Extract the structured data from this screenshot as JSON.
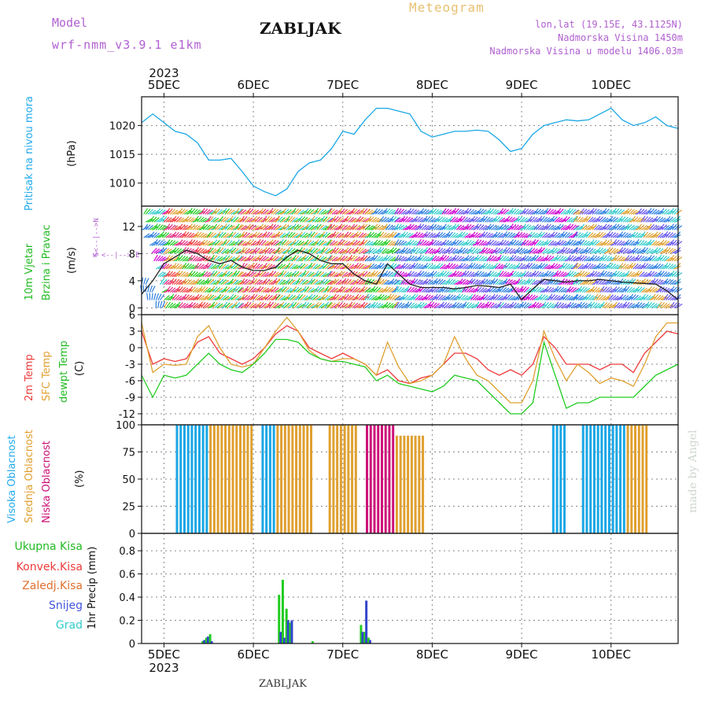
{
  "header": {
    "model_label": "Model",
    "model_name": "wrf-nmm_v3.9.1 e1km",
    "station": "ZABLJAK",
    "product": "Meteogram",
    "coords": "lon,lat (19.15E, 43.1125N)",
    "elevation": "Nadmorska Visina 1450m",
    "model_elevation": "Nadmorska Visina u modelu 1406.03m",
    "footer_station": "ZABLJAK",
    "watermark": "made by Angel"
  },
  "colors": {
    "pressure": "#1aa7e6",
    "red": "#ee3b3b",
    "orange": "#e0a030",
    "green": "#22cc22",
    "magenta": "#cc1177",
    "blue": "#3344cc",
    "cyan": "#33cccc",
    "purple": "#a040c0",
    "grid": "#888888"
  },
  "chart_data": {
    "x_axis": {
      "year": "2023",
      "day_labels": [
        "5DEC",
        "6DEC",
        "7DEC",
        "8DEC",
        "9DEC",
        "10DEC"
      ],
      "x_range_hours": [
        0,
        144
      ],
      "note_day_hours": [
        0,
        24,
        48,
        72,
        96,
        120
      ]
    },
    "panels": [
      {
        "name": "pressure",
        "type": "line",
        "ylabel_left": "Pritisak na nivou mora",
        "unit": "(hPa)",
        "yticks": [
          "1010",
          "1015",
          "1020"
        ],
        "ylim": [
          1006,
          1025
        ],
        "series": [
          {
            "color": "pressure",
            "x": [
              -6,
              -3,
              0,
              3,
              6,
              9,
              12,
              15,
              18,
              21,
              24,
              27,
              30,
              33,
              36,
              39,
              42,
              45,
              48,
              51,
              54,
              57,
              60,
              63,
              66,
              69,
              72,
              75,
              78,
              81,
              84,
              87,
              90,
              93,
              96,
              99,
              102,
              105,
              108,
              111,
              114,
              117,
              120,
              123,
              126,
              129,
              132,
              135,
              138
            ],
            "y": [
              1020.5,
              1022,
              1020.5,
              1019,
              1018.5,
              1017,
              1014,
              1014,
              1014.3,
              1012,
              1009.5,
              1008.5,
              1007.8,
              1009,
              1012,
              1013.5,
              1014,
              1016,
              1019,
              1018.5,
              1021,
              1023,
              1023,
              1022.5,
              1022,
              1019,
              1018,
              1018.5,
              1019,
              1019,
              1019.2,
              1019,
              1017.5,
              1015.5,
              1016,
              1018.5,
              1020,
              1020.5,
              1021,
              1020.8,
              1021,
              1022,
              1023,
              1021,
              1020,
              1020.5,
              1021.5,
              1020,
              1019.5
            ]
          }
        ]
      },
      {
        "name": "wind",
        "type": "line",
        "ylabel_left": "10m Vjetar",
        "ylabel_left2": "Brzina i Pravac",
        "unit": "(m/s)",
        "compass": "w <--|--> E",
        "compass2": "S<--|-->N",
        "yticks": [
          "0",
          "4",
          "8",
          "12"
        ],
        "ylim": [
          -1,
          15
        ],
        "series": [
          {
            "color": "#222222",
            "x": [
              -6,
              -3,
              0,
              3,
              6,
              9,
              12,
              15,
              18,
              21,
              24,
              27,
              30,
              33,
              36,
              39,
              42,
              45,
              48,
              51,
              54,
              57,
              60,
              63,
              66,
              69,
              72,
              75,
              78,
              81,
              84,
              87,
              90,
              93,
              96,
              99,
              102,
              105,
              108,
              111,
              114,
              117,
              120,
              123,
              126,
              129,
              132,
              135,
              138
            ],
            "y": [
              2,
              4,
              6.5,
              7.5,
              8.5,
              8,
              7,
              6.5,
              7,
              6,
              5.5,
              5.5,
              6,
              7.5,
              8.5,
              8,
              7,
              6.5,
              6.5,
              5,
              4,
              3.5,
              6.5,
              5,
              3.5,
              3,
              3,
              3,
              2.8,
              3,
              3.3,
              3.2,
              3,
              3.5,
              1.2,
              2.8,
              4.2,
              4,
              3.8,
              4,
              4,
              4.2,
              4,
              3.8,
              3.7,
              3.6,
              3.5,
              2.5,
              1.2
            ]
          }
        ]
      },
      {
        "name": "temperature",
        "type": "line",
        "ylabel_left": "2m Temp",
        "ylabel_left2": "SFC Temp",
        "ylabel_left3": "dewpt Temp",
        "unit": "(C)",
        "yticks": [
          "-12",
          "-9",
          "-6",
          "-3",
          "0",
          "3",
          "6"
        ],
        "ylim": [
          -14,
          6
        ],
        "series": [
          {
            "name": "2m Temp",
            "color": "red",
            "x": [
              -6,
              -3,
              0,
              3,
              6,
              9,
              12,
              15,
              18,
              21,
              24,
              27,
              30,
              33,
              36,
              39,
              42,
              45,
              48,
              51,
              54,
              57,
              60,
              63,
              66,
              69,
              72,
              75,
              78,
              81,
              84,
              87,
              90,
              93,
              96,
              99,
              102,
              105,
              108,
              111,
              114,
              117,
              120,
              123,
              126,
              129,
              132,
              135,
              138
            ],
            "y": [
              3,
              -3,
              -2,
              -2.5,
              -2,
              1,
              2,
              -1,
              -2,
              -3,
              -2,
              0,
              2.5,
              4,
              3,
              0,
              -1,
              -2,
              -1,
              -2,
              -3,
              -5,
              -4,
              -6,
              -6.5,
              -5.5,
              -5,
              -3,
              -1,
              -1,
              -2,
              -4,
              -5,
              -4,
              -5,
              -3,
              2,
              0,
              -3,
              -3,
              -3,
              -4,
              -3,
              -3,
              -4.5,
              -1,
              1,
              3,
              2.5
            ]
          },
          {
            "name": "SFC Temp",
            "color": "orange",
            "x": [
              -6,
              -3,
              0,
              3,
              6,
              9,
              12,
              15,
              18,
              21,
              24,
              27,
              30,
              33,
              36,
              39,
              42,
              45,
              48,
              51,
              54,
              57,
              60,
              63,
              66,
              69,
              72,
              75,
              78,
              81,
              84,
              87,
              90,
              93,
              96,
              99,
              102,
              105,
              108,
              111,
              114,
              117,
              120,
              123,
              126,
              129,
              132,
              135,
              138
            ],
            "y": [
              4.5,
              -4.5,
              -3,
              -3.2,
              -3,
              2,
              4,
              0,
              -3,
              -3.5,
              -3,
              0,
              3,
              5.5,
              3,
              -0.5,
              -2,
              -2.5,
              -2,
              -2,
              -3,
              -5,
              1,
              -3.5,
              -6.5,
              -6,
              -5,
              -3,
              2,
              -2,
              -5,
              -6,
              -8,
              -10,
              -10,
              -6,
              3,
              -2,
              -6,
              -3,
              -4.5,
              -6.5,
              -5.5,
              -6,
              -7,
              -3,
              2,
              4.5,
              4.5
            ]
          },
          {
            "name": "dewpt Temp",
            "color": "green",
            "x": [
              -6,
              -3,
              0,
              3,
              6,
              9,
              12,
              15,
              18,
              21,
              24,
              27,
              30,
              33,
              36,
              39,
              42,
              45,
              48,
              51,
              54,
              57,
              60,
              63,
              66,
              69,
              72,
              75,
              78,
              81,
              84,
              87,
              90,
              93,
              96,
              99,
              102,
              105,
              108,
              111,
              114,
              117,
              120,
              123,
              126,
              129,
              132,
              135,
              138
            ],
            "y": [
              -5,
              -9,
              -5,
              -5.5,
              -5,
              -3,
              -1,
              -3,
              -4,
              -4.5,
              -3,
              -1,
              1.5,
              1.5,
              1,
              -1,
              -2,
              -2.5,
              -2.5,
              -3,
              -3.5,
              -6,
              -5,
              -6.5,
              -7,
              -7.5,
              -8,
              -7,
              -5,
              -5.5,
              -6,
              -8,
              -10,
              -12,
              -12,
              -10,
              1,
              -5,
              -11,
              -10,
              -10,
              -9,
              -9,
              -9,
              -9,
              -7,
              -5,
              -4,
              -3
            ]
          }
        ]
      },
      {
        "name": "cloud",
        "type": "bar",
        "ylabel_left": "Visoka Oblacnost",
        "ylabel_left2": "Srednja Oblacnost",
        "ylabel_left3": "Niska Oblacnost",
        "unit": "(%)",
        "yticks": [
          "0",
          "25",
          "50",
          "75",
          "100"
        ],
        "ylim": [
          0,
          100
        ],
        "bands": [
          {
            "color": "pressure",
            "x_start": 3,
            "x_end": 12,
            "value": 100
          },
          {
            "color": "orange",
            "x_start": 12,
            "x_end": 24,
            "value": 100
          },
          {
            "color": "pressure",
            "x_start": 26,
            "x_end": 30,
            "value": 100
          },
          {
            "color": "orange",
            "x_start": 30,
            "x_end": 40,
            "value": 100
          },
          {
            "color": "orange",
            "x_start": 44,
            "x_end": 52,
            "value": 100
          },
          {
            "color": "magenta",
            "x_start": 54,
            "x_end": 62,
            "value": 100
          },
          {
            "color": "orange",
            "x_start": 62,
            "x_end": 70,
            "value": 90
          },
          {
            "color": "pressure",
            "x_start": 104,
            "x_end": 108,
            "value": 100
          },
          {
            "color": "pressure",
            "x_start": 112,
            "x_end": 124,
            "value": 100
          },
          {
            "color": "orange",
            "x_start": 124,
            "x_end": 130,
            "value": 100
          }
        ]
      },
      {
        "name": "precip",
        "type": "bar",
        "ylabel_left": "1hr Precip (mm)",
        "legend": [
          "Ukupna Kisa",
          "Konvek.Kisa",
          "Zaledj.Kisa",
          "Snijeg",
          "Grad"
        ],
        "yticks": [
          "0",
          "0.2",
          "0.4",
          "0.6",
          "0.8"
        ],
        "ylim": [
          0,
          0.95
        ],
        "bars": [
          {
            "x": 10.5,
            "green": 0.02,
            "blue": 0.03
          },
          {
            "x": 11.5,
            "green": 0.05,
            "blue": 0.06
          },
          {
            "x": 12.5,
            "green": 0.08,
            "blue": 0.02
          },
          {
            "x": 31.0,
            "green": 0.42,
            "blue": 0.1
          },
          {
            "x": 32.0,
            "green": 0.55,
            "blue": 0.05
          },
          {
            "x": 33.0,
            "green": 0.3,
            "blue": 0.2
          },
          {
            "x": 34.0,
            "green": 0.18,
            "blue": 0.2
          },
          {
            "x": 40.0,
            "green": 0.02,
            "blue": 0.0
          },
          {
            "x": 53.0,
            "green": 0.16,
            "blue": 0.1
          },
          {
            "x": 54.0,
            "green": 0.1,
            "blue": 0.37
          },
          {
            "x": 55.0,
            "green": 0.05,
            "blue": 0.03
          }
        ]
      }
    ]
  }
}
